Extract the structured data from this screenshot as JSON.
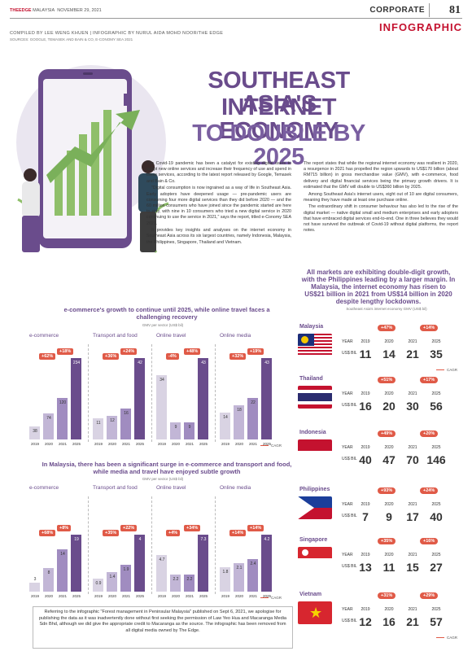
{
  "header": {
    "brand": "THEEDGE",
    "brand_suffix": "MALAYSIA",
    "date": "NOVEMBER 29, 2021",
    "section": "CORPORATE",
    "page_number": "81",
    "label": "INFOGRAPHIC"
  },
  "credits": {
    "compiled_by": "COMPILED BY LEE WENG KHUEN | INFOGRAPHIC BY NURUL AIDA MOHD NOOR/THE EDGE",
    "sources": "SOURCES: GOOGLE, TEMASEK AND BAIN & CO, E-CONOMY SEA 2021"
  },
  "title": {
    "line1": "SOUTHEAST ASIA'S",
    "line2": "INTERNET ECONOMY",
    "line3": "TO DOUBLE BY 2025"
  },
  "article": {
    "col1": [
      "The Covid-19 pandemic has been a catalyst for existing digital users to adopt new online services and increase their frequency of use and spend in these services, according to the latest report released by Google, Temasek and Bain & Co.",
      "\"Digital consumption is now ingrained as a way of life in Southeast Asia. Early adopters have deepened usage — pre-pandemic users are consuming four more digital services than they did before 2020 — and the 60 million consumers who have joined since the pandemic started are here to stay, with nine in 10 consumers who tried a new digital service in 2020 continuing to use the service in 2021,\" says the report, titled e-Conomy SEA 2021.",
      "It provides key insights and analyses on the internet economy in Southeast Asia across its six largest countries, namely Indonesia, Malaysia, the Philippines, Singapore, Thailand and Vietnam."
    ],
    "col2": [
      "The report states that while the regional internet economy was resilient in 2020, a resurgence in 2021 has propelled the region upwards to US$170 billion (about RM715 billion) in gross merchandise value (GMV), with e-commerce, food delivery and digital financial services being the primary growth drivers. It is estimated that the GMV will double to US$360 billion by 2025.",
      "Among Southeast Asia's internet users, eight out of 10 are digital consumers, meaning they have made at least one purchase online.",
      "The extraordinary shift in consumer behaviour has also led to the rise of the digital market — native digital small and medium enterprises and early adopters that have embraced digital services end-to-end. One in three believes they would not have survived the outbreak of Covid-19 without digital platforms, the report notes."
    ]
  },
  "markets": {
    "headline": "All markets are exhibiting double-digit growth, with the Philippines leading by a larger margin. In Malaysia, the internet economy has risen to US$21 billion in 2021 from US$14 billion in 2020 despite lengthy lockdowns.",
    "subtitle": "Southeast Asia's internet economy GMV (US$ bil)",
    "year_label": "YEAR",
    "unit_label": "US$ BIL",
    "cagr_label": "CAGR",
    "countries": [
      {
        "name": "Malaysia",
        "years": [
          "2019",
          "2020",
          "2021",
          "2025"
        ],
        "values": [
          "11",
          "14",
          "21",
          "35"
        ],
        "growth": [
          "+47%",
          "+14%"
        ]
      },
      {
        "name": "Thailand",
        "years": [
          "2019",
          "2020",
          "2021",
          "2025"
        ],
        "values": [
          "16",
          "20",
          "30",
          "56"
        ],
        "growth": [
          "+51%",
          "+17%"
        ]
      },
      {
        "name": "Indonesia",
        "years": [
          "2019",
          "2020",
          "2021",
          "2025"
        ],
        "values": [
          "40",
          "47",
          "70",
          "146"
        ],
        "growth": [
          "+49%",
          "+20%"
        ]
      },
      {
        "name": "Philippines",
        "years": [
          "2019",
          "2020",
          "2021",
          "2025"
        ],
        "values": [
          "7",
          "9",
          "17",
          "40"
        ],
        "growth": [
          "+93%",
          "+24%"
        ]
      },
      {
        "name": "Singapore",
        "years": [
          "2019",
          "2020",
          "2021",
          "2025"
        ],
        "values": [
          "13",
          "11",
          "15",
          "27"
        ],
        "growth": [
          "+35%",
          "+16%"
        ]
      },
      {
        "name": "Vietnam",
        "years": [
          "2019",
          "2020",
          "2021",
          "2025"
        ],
        "values": [
          "12",
          "16",
          "21",
          "57"
        ],
        "growth": [
          "+31%",
          "+29%"
        ]
      }
    ]
  },
  "chart_data": [
    {
      "type": "bar",
      "title": "e-commerce's growth to continue until 2025, while online travel faces a challenging recovery",
      "subtitle": "GMV per sector (US$ bil)",
      "panels": [
        {
          "name": "e-commerce",
          "categories": [
            "2019",
            "2020",
            "2021",
            "2025"
          ],
          "values": [
            38,
            74,
            120,
            234
          ],
          "growth": [
            "+62%",
            "+18%"
          ]
        },
        {
          "name": "Transport and food",
          "categories": [
            "2019",
            "2020",
            "2021",
            "2025"
          ],
          "values": [
            11,
            12,
            16,
            42
          ],
          "growth": [
            "+36%",
            "+24%"
          ]
        },
        {
          "name": "Online travel",
          "categories": [
            "2019",
            "2020",
            "2021",
            "2025"
          ],
          "values": [
            34,
            9,
            9,
            43
          ],
          "growth": [
            "-4%",
            "+48%"
          ]
        },
        {
          "name": "Online media",
          "categories": [
            "2019",
            "2020",
            "2021",
            "2025"
          ],
          "values": [
            14,
            18,
            22,
            43
          ],
          "growth": [
            "+32%",
            "+19%"
          ]
        }
      ],
      "legend": "CAGR"
    },
    {
      "type": "bar",
      "title": "In Malaysia, there has been a significant surge in e-commerce and transport and food, while media and travel have enjoyed subtle growth",
      "subtitle": "GMV per sector (US$ bil)",
      "panels": [
        {
          "name": "e-commerce",
          "categories": [
            "2019",
            "2020",
            "2021",
            "2025"
          ],
          "values": [
            3,
            8,
            14,
            19
          ],
          "growth": [
            "+68%",
            "+8%"
          ]
        },
        {
          "name": "Transport and food",
          "categories": [
            "2019",
            "2020",
            "2021",
            "2025"
          ],
          "values": [
            0.9,
            1.4,
            1.9,
            4
          ],
          "growth": [
            "+35%",
            "+22%"
          ]
        },
        {
          "name": "Online travel",
          "categories": [
            "2019",
            "2020",
            "2021",
            "2025"
          ],
          "values": [
            4.7,
            2.2,
            2.2,
            7.3
          ],
          "growth": [
            "+4%",
            "+34%"
          ]
        },
        {
          "name": "Online media",
          "categories": [
            "2019",
            "2020",
            "2021",
            "2025"
          ],
          "values": [
            1.8,
            2.1,
            2.4,
            4.2
          ],
          "growth": [
            "+14%",
            "+14%"
          ]
        }
      ],
      "legend": "CAGR"
    }
  ],
  "notice": "Referring to the infographic \"Forest management in Peninsular Malaysia\" published on Sept 6, 2021, we apologise for publishing the data as it was inadvertently done without first seeking the permission of Law Yeo Hua and Macaranga Media Sdn Bhd, although we did give the appropriate credit to Macaranga as the source. The infographic has been removed from all digital media owned by The Edge.",
  "colors": {
    "purple": "#6a4c8c",
    "lavender": "#b9a9d1",
    "accent": "#e05a47",
    "green": "#8fbf6a"
  }
}
